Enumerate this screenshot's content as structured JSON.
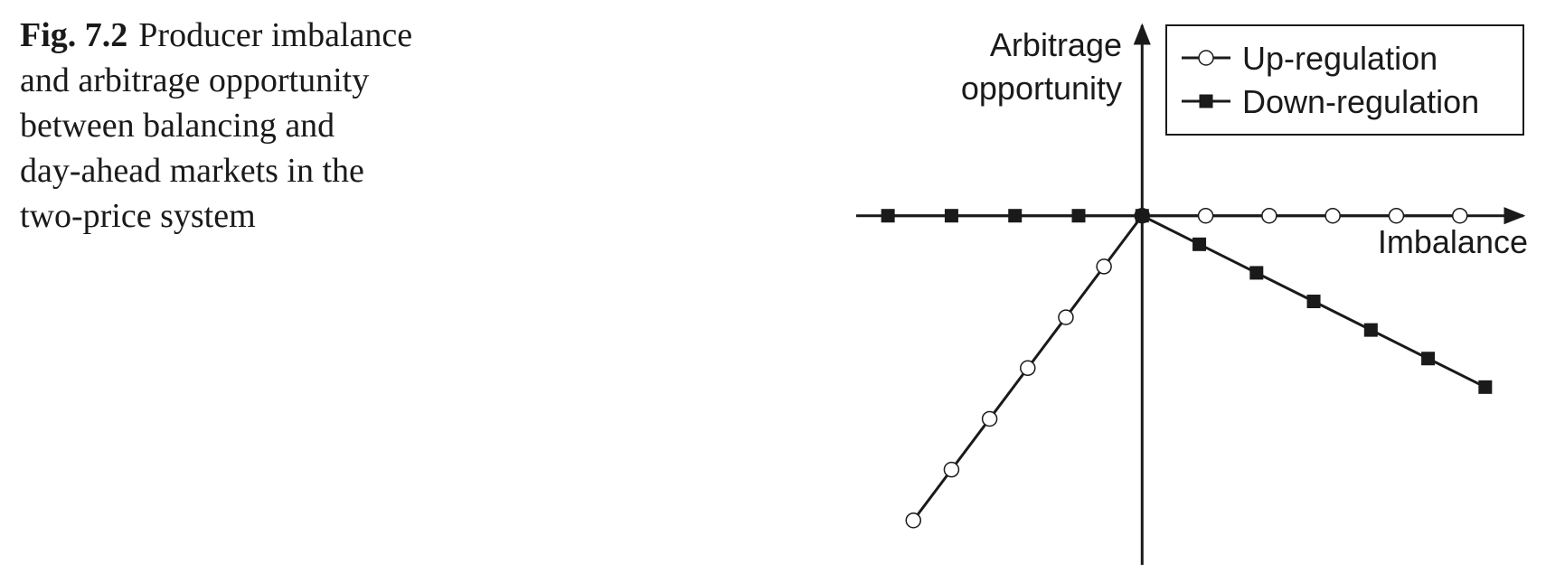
{
  "figure_label": "Fig. 7.2",
  "caption_lines": [
    "Producer imbalance",
    "and arbitrage opportunity",
    "between balancing and",
    "day-ahead markets in the",
    "two-price system"
  ],
  "chart_data": {
    "type": "line",
    "x_label": "Imbalance",
    "y_label_lines": [
      "Arbitrage",
      "opportunity"
    ],
    "xlim": [
      -4.5,
      6.0
    ],
    "ylim": [
      -5.5,
      3.0
    ],
    "legend": "top-right",
    "series": [
      {
        "name": "Up-regulation",
        "color": "#1a1a1a",
        "marker": "circle",
        "x": [
          -3.6,
          -3,
          -2.4,
          -1.8,
          -1.2,
          -0.6,
          0,
          1,
          2,
          3,
          4,
          5
        ],
        "values": [
          -4.8,
          -4,
          -3.2,
          -2.4,
          -1.6,
          -0.8,
          0,
          0,
          0,
          0,
          0,
          0
        ]
      },
      {
        "name": "Down-regulation",
        "color": "#1a1a1a",
        "marker": "square",
        "x": [
          -4,
          -3,
          -2,
          -1,
          0,
          0.9,
          1.8,
          2.7,
          3.6,
          4.5,
          5.4
        ],
        "values": [
          0,
          0,
          0,
          0,
          0,
          -0.45,
          -0.9,
          -1.35,
          -1.8,
          -2.25,
          -2.7
        ]
      }
    ]
  }
}
